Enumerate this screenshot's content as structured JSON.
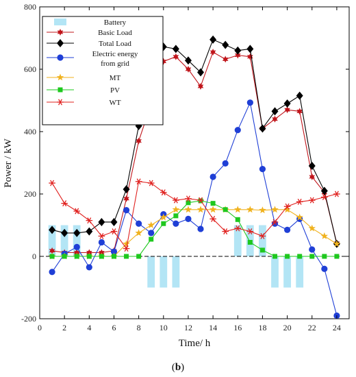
{
  "caption": {
    "prefix": "(",
    "letter": "b",
    "suffix": ")"
  },
  "chart_data": {
    "type": "line",
    "xlabel": "Time/ h",
    "ylabel": "Power / kW",
    "xlim": [
      0,
      25
    ],
    "ylim": [
      -200,
      800
    ],
    "xticks": [
      0,
      2,
      4,
      6,
      8,
      10,
      12,
      14,
      16,
      18,
      20,
      22,
      24
    ],
    "yticks": [
      -200,
      0,
      200,
      400,
      600,
      800
    ],
    "grid": false,
    "legend_position": "top-left",
    "baseline_style": "dashed",
    "x": [
      1,
      2,
      3,
      4,
      5,
      6,
      7,
      8,
      9,
      10,
      11,
      12,
      13,
      14,
      15,
      16,
      17,
      18,
      19,
      20,
      21,
      22,
      23,
      24
    ],
    "series": [
      {
        "name": "Battery",
        "kind": "bar",
        "color": "#b3e5f5",
        "marker": "rect",
        "values": [
          100,
          100,
          100,
          0,
          0,
          0,
          0,
          0,
          -100,
          -100,
          -100,
          0,
          0,
          0,
          0,
          100,
          100,
          100,
          -100,
          -100,
          -100,
          0,
          0,
          0
        ]
      },
      {
        "name": "Basic Load",
        "kind": "line",
        "color": "#c0141a",
        "marker": "star6",
        "values": [
          18,
          12,
          12,
          12,
          12,
          18,
          185,
          370,
          488,
          625,
          640,
          600,
          545,
          655,
          632,
          645,
          640,
          410,
          440,
          470,
          465,
          255,
          205,
          42
        ]
      },
      {
        "name": "Total Load",
        "kind": "line",
        "color": "#000000",
        "marker": "diamond",
        "values": [
          85,
          75,
          75,
          80,
          110,
          110,
          215,
          418,
          570,
          672,
          665,
          628,
          590,
          695,
          678,
          660,
          665,
          410,
          465,
          490,
          515,
          290,
          210,
          40
        ]
      },
      {
        "name": "Electric energy from grid",
        "kind": "line",
        "color": "#1f3fd6",
        "marker": "circle",
        "values": [
          -50,
          8,
          30,
          -35,
          45,
          15,
          148,
          105,
          75,
          135,
          105,
          120,
          88,
          255,
          298,
          405,
          493,
          280,
          105,
          85,
          120,
          22,
          -40,
          -190
        ]
      },
      {
        "name": "MT",
        "kind": "line",
        "color": "#f0b21e",
        "marker": "star5",
        "values": [
          0,
          0,
          0,
          0,
          0,
          0,
          40,
          75,
          100,
          125,
          150,
          150,
          150,
          150,
          150,
          150,
          150,
          148,
          150,
          150,
          125,
          90,
          65,
          40
        ]
      },
      {
        "name": "PV",
        "kind": "line",
        "color": "#1ec81e",
        "marker": "square",
        "values": [
          0,
          0,
          0,
          0,
          0,
          0,
          0,
          0,
          55,
          105,
          130,
          172,
          178,
          170,
          150,
          118,
          45,
          20,
          0,
          0,
          0,
          0,
          0,
          0
        ]
      },
      {
        "name": "WT",
        "kind": "line",
        "color": "#e0201e",
        "marker": "asterisk",
        "values": [
          235,
          170,
          145,
          115,
          65,
          80,
          25,
          240,
          235,
          205,
          180,
          185,
          180,
          120,
          80,
          90,
          80,
          65,
          110,
          160,
          175,
          180,
          190,
          200
        ]
      }
    ]
  }
}
